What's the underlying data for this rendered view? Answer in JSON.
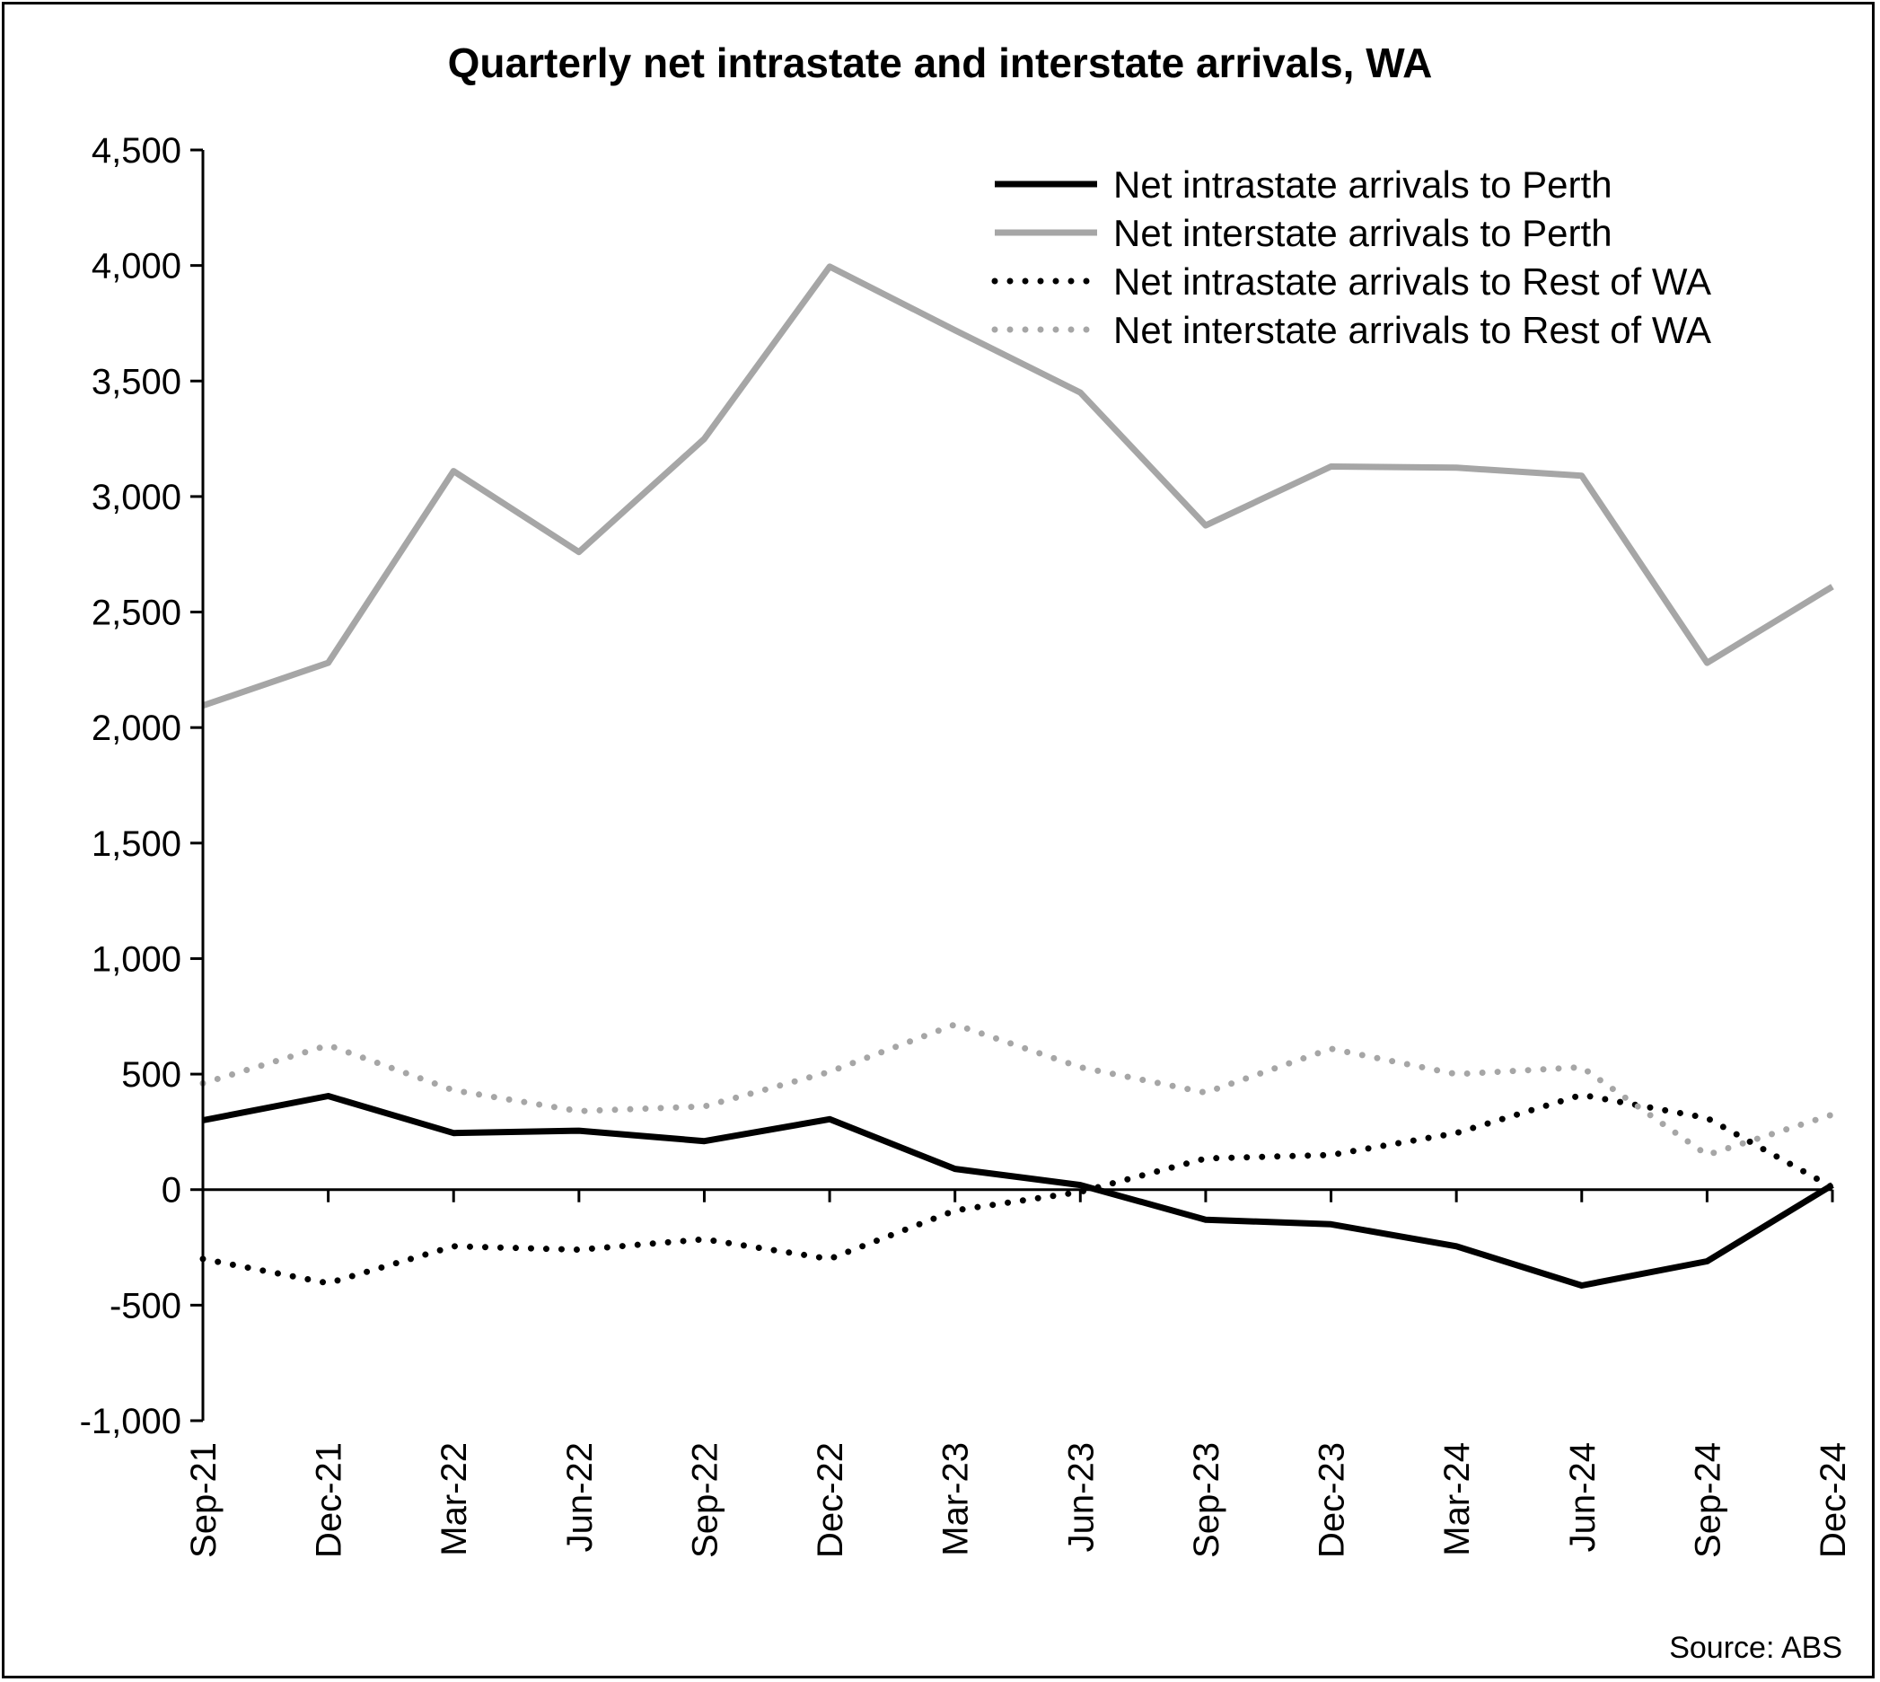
{
  "chart_data": {
    "type": "line",
    "title": "Quarterly net intrastate and interstate arrivals, WA",
    "source": "Source: ABS",
    "xlabel": "",
    "ylabel": "",
    "categories": [
      "Sep-21",
      "Dec-21",
      "Mar-22",
      "Jun-22",
      "Sep-22",
      "Dec-22",
      "Mar-23",
      "Jun-23",
      "Sep-23",
      "Dec-23",
      "Mar-24",
      "Jun-24",
      "Sep-24",
      "Dec-24"
    ],
    "ylim": [
      -1000,
      4500
    ],
    "yticks": [
      -1000,
      -500,
      0,
      500,
      1000,
      1500,
      2000,
      2500,
      3000,
      3500,
      4000,
      4500
    ],
    "ytick_labels": [
      "-1,000",
      "-500",
      "0",
      "500",
      "1,000",
      "1,500",
      "2,000",
      "2,500",
      "3,000",
      "3,500",
      "4,000",
      "4,500"
    ],
    "grid": false,
    "legend_position": "top-right",
    "series": [
      {
        "name": "Net intrastate arrivals to Perth",
        "color": "#000000",
        "style": "solid",
        "values": [
          300,
          405,
          245,
          255,
          210,
          305,
          90,
          20,
          -130,
          -150,
          -245,
          -415,
          -310,
          20
        ]
      },
      {
        "name": "Net interstate arrivals to Perth",
        "color": "#a6a6a6",
        "style": "solid",
        "values": [
          2095,
          2280,
          3110,
          2760,
          3250,
          3995,
          3720,
          3450,
          2875,
          3130,
          3125,
          3090,
          2280,
          2610
        ]
      },
      {
        "name": "Net intrastate arrivals to Rest of WA",
        "color": "#000000",
        "style": "dotted",
        "values": [
          -300,
          -405,
          -245,
          -260,
          -215,
          -300,
          -90,
          -10,
          135,
          150,
          245,
          410,
          310,
          10
        ]
      },
      {
        "name": "Net interstate arrivals to Rest of WA",
        "color": "#a6a6a6",
        "style": "dotted",
        "values": [
          460,
          625,
          430,
          340,
          360,
          510,
          715,
          530,
          420,
          610,
          500,
          530,
          150,
          325
        ]
      }
    ]
  }
}
